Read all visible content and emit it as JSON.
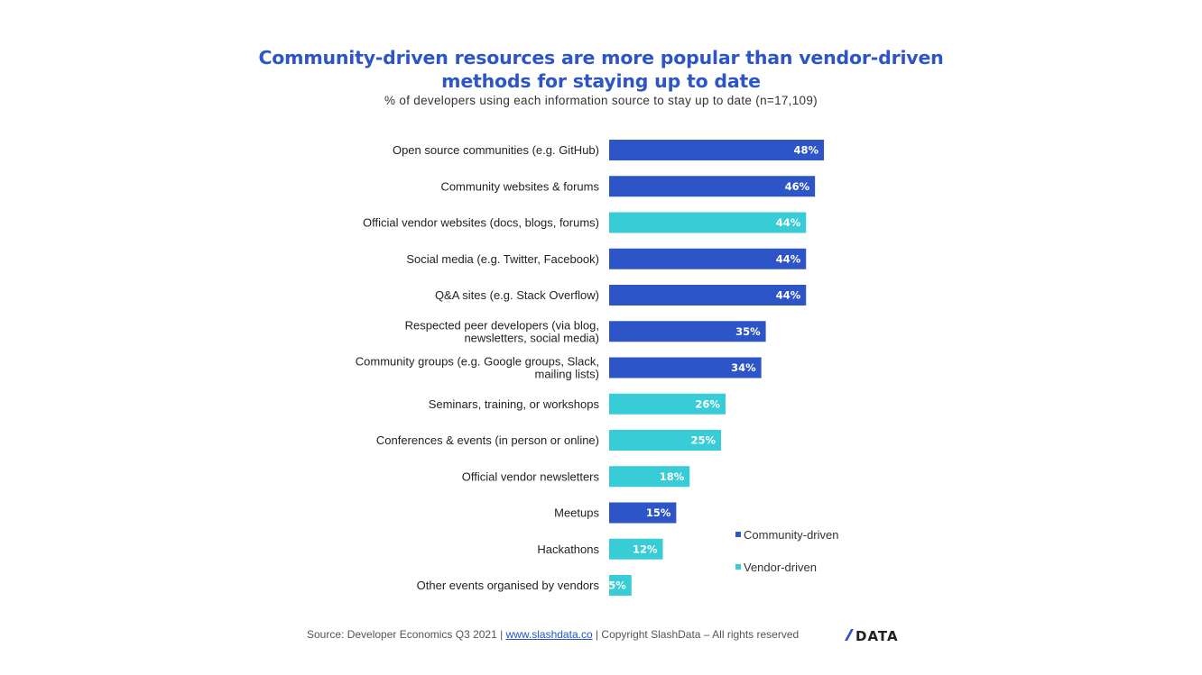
{
  "chart_data": {
    "type": "bar",
    "orientation": "horizontal",
    "title": "Community-driven resources are more popular than vendor-driven methods for staying up to date",
    "title_lines": [
      "Community-driven resources are more popular than vendor-driven",
      "methods for staying up to date"
    ],
    "subtitle": "% of developers using each information source to stay up to date (n=17,109)",
    "xlabel": "",
    "ylabel": "",
    "xlim": [
      0,
      100
    ],
    "grid": false,
    "legend_position": "bottom-right",
    "categories": [
      [
        "Open source communities (e.g. GitHub)"
      ],
      [
        "Community websites & forums"
      ],
      [
        "Official vendor websites (docs, blogs, forums)"
      ],
      [
        "Social media (e.g. Twitter, Facebook)"
      ],
      [
        "Q&A sites (e.g. Stack Overflow)"
      ],
      [
        "Respected peer developers (via blog,",
        "newsletters, social media)"
      ],
      [
        "Community groups (e.g. Google groups, Slack,",
        "mailing lists)"
      ],
      [
        "Seminars, training, or workshops"
      ],
      [
        "Conferences & events (in person or online)"
      ],
      [
        "Official vendor newsletters"
      ],
      [
        "Meetups"
      ],
      [
        "Hackathons"
      ],
      [
        "Other events organised by vendors"
      ]
    ],
    "values": [
      48,
      46,
      44,
      44,
      44,
      35,
      34,
      26,
      25,
      18,
      15,
      12,
      5
    ],
    "value_labels": [
      "48%",
      "46%",
      "44%",
      "44%",
      "44%",
      "35%",
      "34%",
      "26%",
      "25%",
      "18%",
      "15%",
      "12%",
      "5%"
    ],
    "groups": [
      "Community-driven",
      "Community-driven",
      "Vendor-driven",
      "Community-driven",
      "Community-driven",
      "Community-driven",
      "Community-driven",
      "Vendor-driven",
      "Vendor-driven",
      "Vendor-driven",
      "Community-driven",
      "Vendor-driven",
      "Vendor-driven"
    ],
    "series": [
      {
        "name": "Community-driven",
        "color": "#2d55c8"
      },
      {
        "name": "Vendor-driven",
        "color": "#38cdd6"
      }
    ]
  },
  "footer": {
    "source": "Source: Developer Economics Q3 2021 | ",
    "link": "www.slashdata.co",
    "copyright": " | Copyright SlashData – All rights reserved",
    "logo_text": "DATA"
  }
}
